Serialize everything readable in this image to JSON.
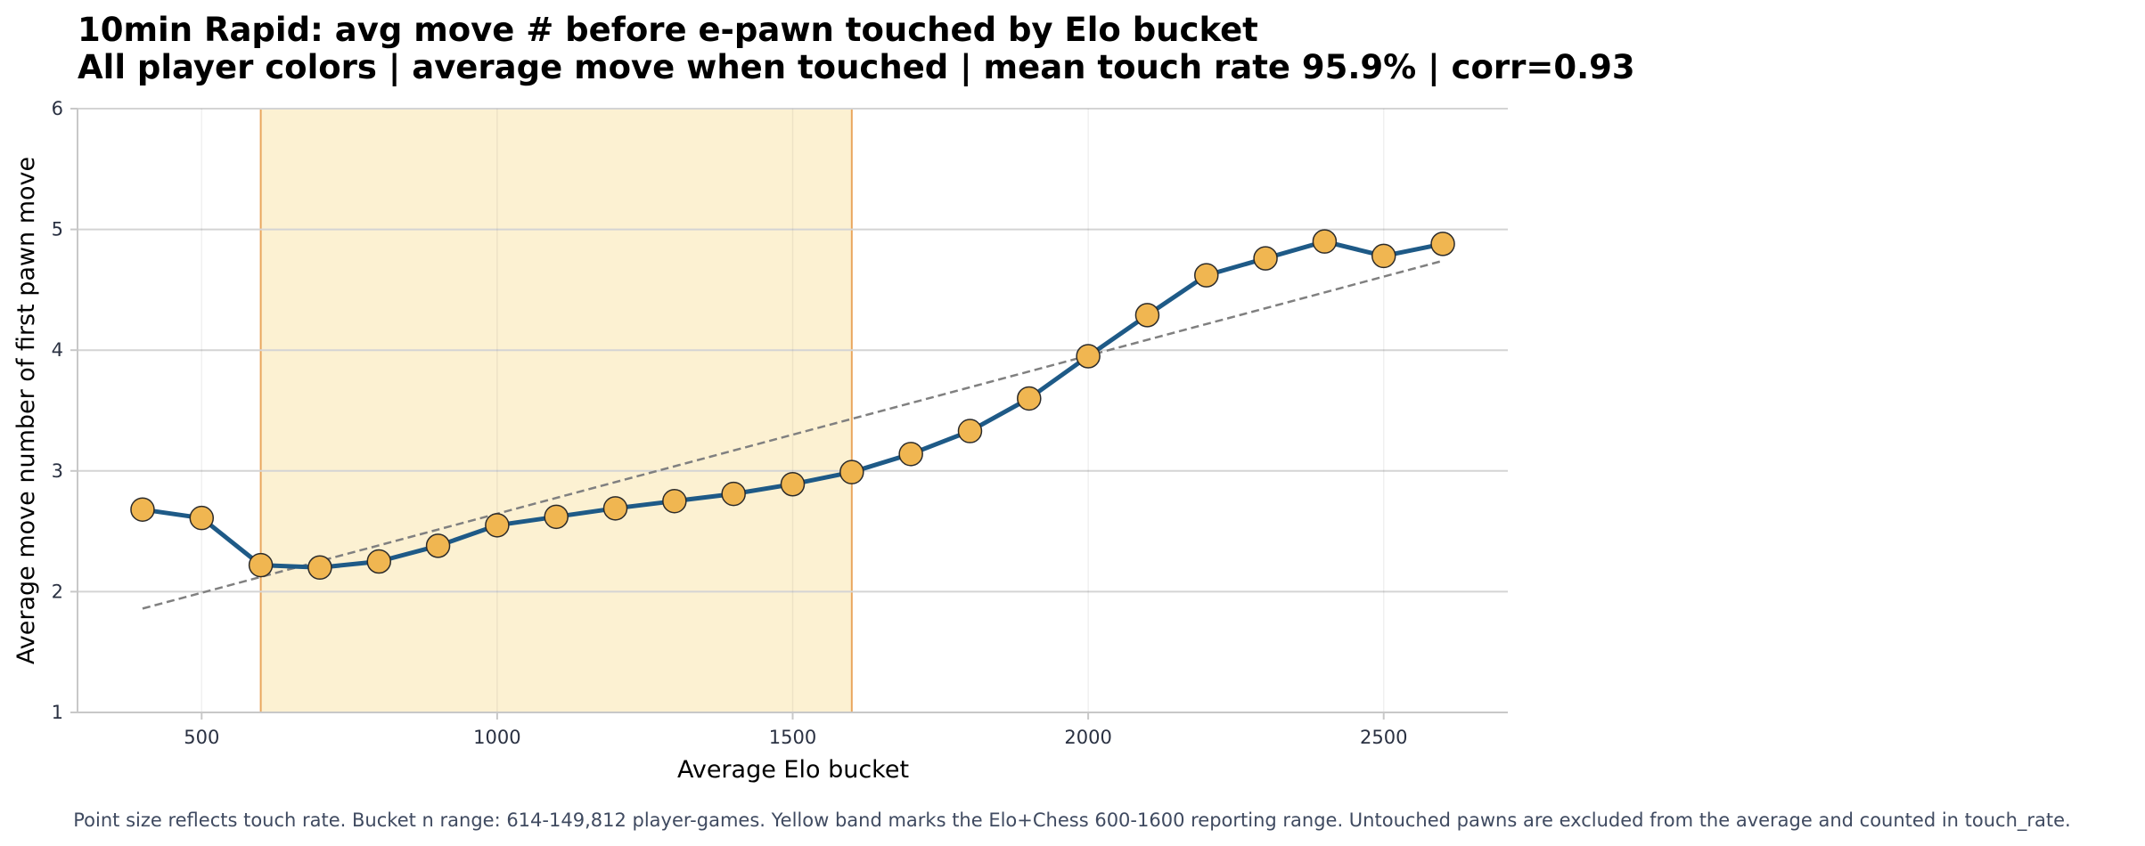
{
  "chart_data": {
    "type": "line",
    "title": "10min Rapid: avg move # before e-pawn touched by Elo bucket",
    "subtitle": "All player colors | average move when touched | mean touch rate 95.9% | corr=0.93",
    "xlabel": "Average Elo bucket",
    "ylabel": "Average move number of first pawn move",
    "xlim": [
      290,
      2710
    ],
    "ylim": [
      1,
      6
    ],
    "xticks": [
      500,
      1000,
      1500,
      2000,
      2500
    ],
    "yticks": [
      1,
      2,
      3,
      4,
      5,
      6
    ],
    "grid": true,
    "band": {
      "x": [
        600,
        1600
      ],
      "color": "#fcf1d2",
      "edge_color": "#e9a65d"
    },
    "trend": {
      "x": [
        400,
        2600
      ],
      "y": [
        1.86,
        4.74
      ],
      "color": "#808080"
    },
    "series": [
      {
        "line_color": "#1e5a87",
        "marker_color": "#f0b651",
        "x": [
          400,
          500,
          600,
          700,
          800,
          900,
          1000,
          1100,
          1200,
          1300,
          1400,
          1500,
          1600,
          1700,
          1800,
          1900,
          2000,
          2100,
          2200,
          2300,
          2400,
          2500,
          2600
        ],
        "y": [
          2.68,
          2.61,
          2.22,
          2.2,
          2.25,
          2.38,
          2.55,
          2.62,
          2.69,
          2.75,
          2.81,
          2.89,
          2.99,
          3.14,
          3.33,
          3.6,
          3.95,
          4.29,
          4.62,
          4.76,
          4.9,
          4.78,
          4.88
        ]
      }
    ],
    "caption": "Point size reflects touch rate. Bucket n range: 614-149,812 player-games. Yellow band marks the Elo+Chess 600-1600 reporting range. Untouched pawns are excluded from the average and counted in touch_rate."
  }
}
